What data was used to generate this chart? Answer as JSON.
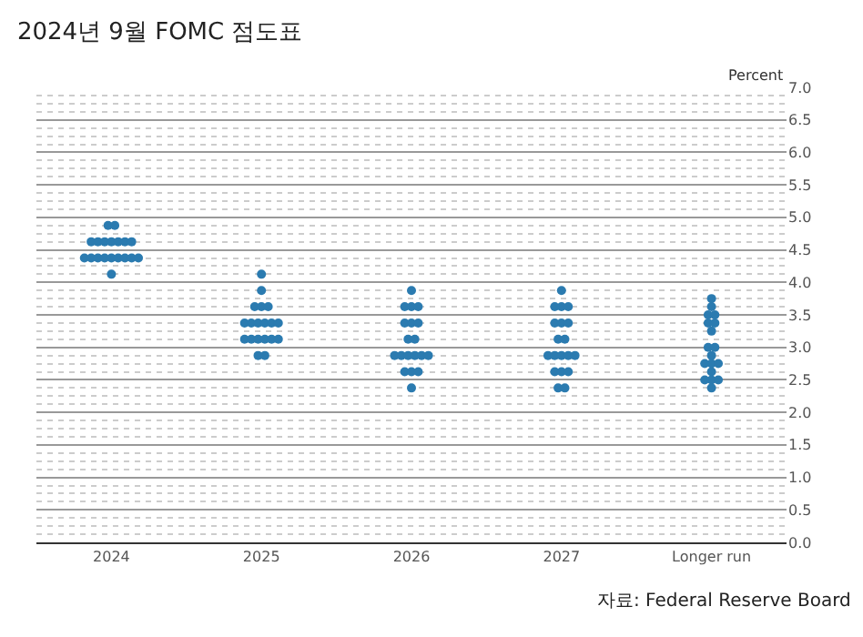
{
  "chart_data": {
    "type": "scatter",
    "title": "2024년 9월 FOMC 점도표",
    "ylabel": "Percent",
    "annotations": [
      "자료: Federal Reserve Board"
    ],
    "categories": [
      "2024",
      "2025",
      "2026",
      "2027",
      "Longer run"
    ],
    "series": [
      {
        "color": "#2b7bb0",
        "values": [
          4.875,
          4.125,
          3.875,
          3.875,
          3.75
        ]
      },
      {
        "color": "#2b7bb0",
        "values": [
          4.875,
          3.875,
          3.625,
          3.625,
          3.625
        ]
      },
      {
        "color": "#2b7bb0",
        "values": [
          4.625,
          3.625,
          3.625,
          3.625,
          3.5
        ]
      },
      {
        "color": "#2b7bb0",
        "values": [
          4.625,
          3.625,
          3.625,
          3.625,
          3.5
        ]
      },
      {
        "color": "#2b7bb0",
        "values": [
          4.625,
          3.625,
          3.375,
          3.375,
          3.375
        ]
      },
      {
        "color": "#2b7bb0",
        "values": [
          4.625,
          3.375,
          3.375,
          3.375,
          3.375
        ]
      },
      {
        "color": "#2b7bb0",
        "values": [
          4.625,
          3.375,
          3.375,
          3.375,
          3.25
        ]
      },
      {
        "color": "#2b7bb0",
        "values": [
          4.625,
          3.375,
          3.125,
          3.125,
          3.0
        ]
      },
      {
        "color": "#2b7bb0",
        "values": [
          4.625,
          3.375,
          3.125,
          3.125,
          3.0
        ]
      },
      {
        "color": "#2b7bb0",
        "values": [
          4.375,
          3.375,
          2.875,
          2.875,
          2.875
        ]
      },
      {
        "color": "#2b7bb0",
        "values": [
          4.375,
          3.375,
          2.875,
          2.875,
          2.75
        ]
      },
      {
        "color": "#2b7bb0",
        "values": [
          4.375,
          3.125,
          2.875,
          2.875,
          2.75
        ]
      },
      {
        "color": "#2b7bb0",
        "values": [
          4.375,
          3.125,
          2.875,
          2.875,
          2.75
        ]
      },
      {
        "color": "#2b7bb0",
        "values": [
          4.375,
          3.125,
          2.875,
          2.875,
          2.625
        ]
      },
      {
        "color": "#2b7bb0",
        "values": [
          4.375,
          3.125,
          2.875,
          2.625,
          2.5
        ]
      },
      {
        "color": "#2b7bb0",
        "values": [
          4.375,
          3.125,
          2.625,
          2.625,
          2.5
        ]
      },
      {
        "color": "#2b7bb0",
        "values": [
          4.375,
          3.125,
          2.625,
          2.625,
          2.5
        ]
      },
      {
        "color": "#2b7bb0",
        "values": [
          4.375,
          2.875,
          2.625,
          2.375,
          2.375
        ]
      },
      {
        "color": "#2b7bb0",
        "values": [
          4.125,
          2.875,
          2.375,
          2.375,
          null
        ]
      }
    ],
    "marker": "circle",
    "grid": "y",
    "ylim": [
      0,
      7
    ],
    "yticks": [
      {
        "value": 0,
        "label": "0.0"
      },
      {
        "value": 0.5,
        "label": "0.5"
      },
      {
        "value": 1,
        "label": "1.0"
      },
      {
        "value": 1.5,
        "label": "1.5"
      },
      {
        "value": 2,
        "label": "2.0"
      },
      {
        "value": 2.5,
        "label": "2.5"
      },
      {
        "value": 3,
        "label": "3.0"
      },
      {
        "value": 3.5,
        "label": "3.5"
      },
      {
        "value": 4,
        "label": "4.0"
      },
      {
        "value": 4.5,
        "label": "4.5"
      },
      {
        "value": 5,
        "label": "5.0"
      },
      {
        "value": 5.5,
        "label": "5.5"
      },
      {
        "value": 6,
        "label": "6.0"
      },
      {
        "value": 6.5,
        "label": "6.5"
      },
      {
        "value": 7,
        "label": "7.0"
      }
    ]
  }
}
